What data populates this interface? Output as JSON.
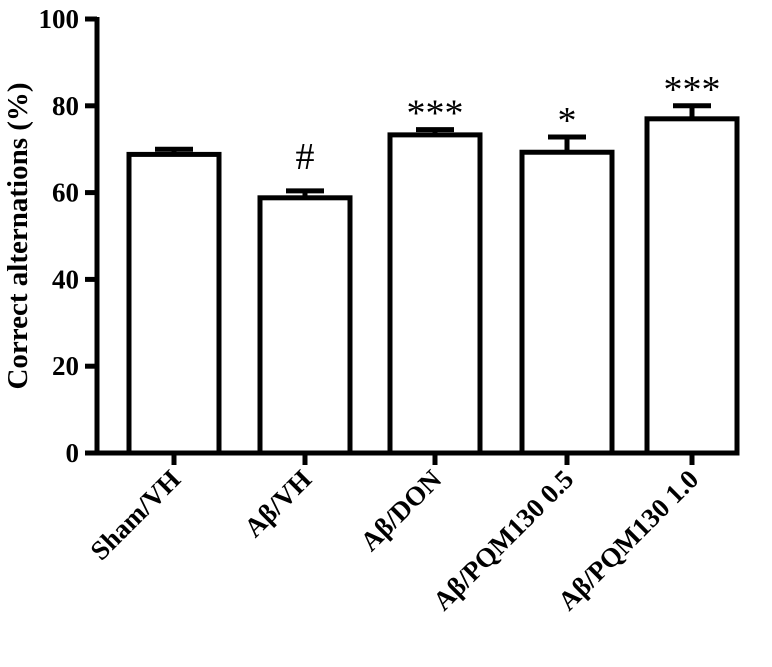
{
  "chart_data": {
    "type": "bar",
    "title": "",
    "xlabel": "",
    "ylabel": "Correct alternations (%)",
    "ylim": [
      0,
      100
    ],
    "yticks": [
      0,
      20,
      40,
      60,
      80,
      100
    ],
    "grid": false,
    "legend": "none",
    "categories": [
      "Sham/VH",
      "Aβ/VH",
      "Aβ/DON",
      "Aβ/PQM130 0.5",
      "Aβ/PQM130 1.0"
    ],
    "values": [
      68.8,
      58.8,
      73.3,
      69.3,
      77.0
    ],
    "errors": [
      1.2,
      1.6,
      1.2,
      3.5,
      3.0
    ],
    "significance": [
      "",
      "#",
      "***",
      "*",
      "***"
    ],
    "colors": {
      "bar_fill": "#ffffff",
      "bar_stroke": "#000000",
      "axis": "#000000"
    }
  }
}
